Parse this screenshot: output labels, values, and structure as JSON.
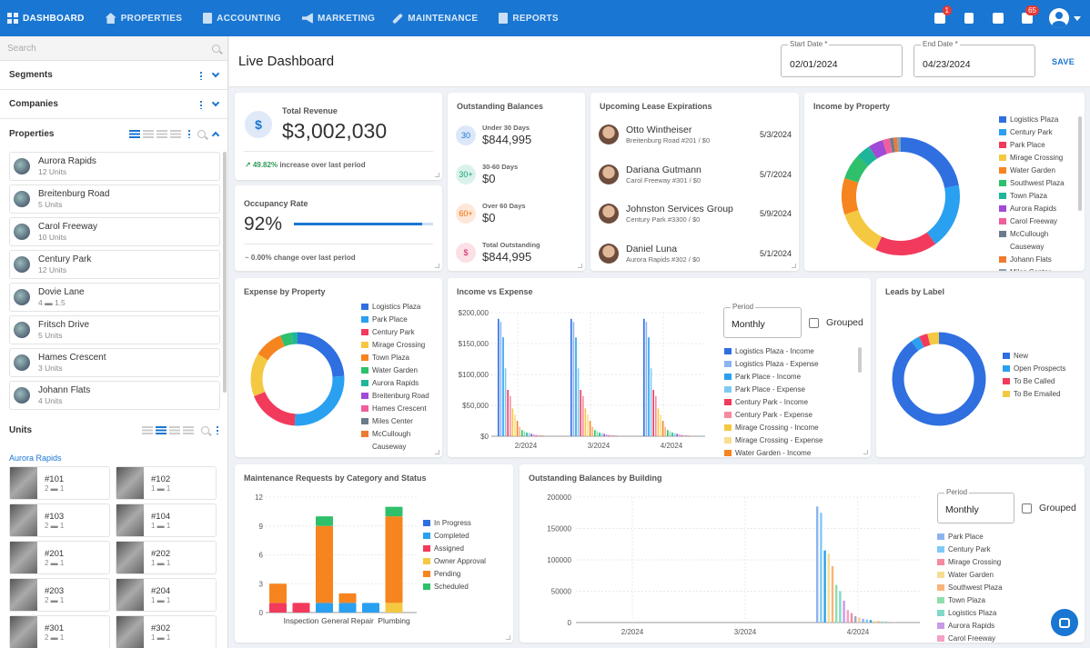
{
  "nav": {
    "items": [
      {
        "label": "DASHBOARD",
        "icon": "dashboard-icon",
        "active": true
      },
      {
        "label": "PROPERTIES",
        "icon": "home-icon"
      },
      {
        "label": "ACCOUNTING",
        "icon": "document-icon"
      },
      {
        "label": "MARKETING",
        "icon": "megaphone-icon"
      },
      {
        "label": "MAINTENANCE",
        "icon": "wrench-icon"
      },
      {
        "label": "REPORTS",
        "icon": "report-icon"
      }
    ],
    "badges": {
      "printer": "1",
      "chat": "65"
    }
  },
  "sidebar": {
    "search_placeholder": "Search",
    "segments": "Segments",
    "companies": "Companies",
    "properties_title": "Properties",
    "properties": [
      {
        "name": "Aurora Rapids",
        "sub": "12 Units"
      },
      {
        "name": "Breitenburg Road",
        "sub": "5 Units"
      },
      {
        "name": "Carol Freeway",
        "sub": "10 Units"
      },
      {
        "name": "Century Park",
        "sub": "12 Units"
      },
      {
        "name": "Dovie Lane",
        "sub": "4 ▬ 1.5"
      },
      {
        "name": "Fritsch Drive",
        "sub": "5 Units"
      },
      {
        "name": "Hames Crescent",
        "sub": "3 Units"
      },
      {
        "name": "Johann Flats",
        "sub": "4 Units"
      }
    ],
    "units_title": "Units",
    "unit_group": "Aurora Rapids",
    "units": [
      {
        "name": "#101",
        "sub": "2 ▬ 1"
      },
      {
        "name": "#102",
        "sub": "1 ▬ 1"
      },
      {
        "name": "#103",
        "sub": "2 ▬ 1"
      },
      {
        "name": "#104",
        "sub": "1 ▬ 1"
      },
      {
        "name": "#201",
        "sub": "2 ▬ 1"
      },
      {
        "name": "#202",
        "sub": "1 ▬ 1"
      },
      {
        "name": "#203",
        "sub": "2 ▬ 1"
      },
      {
        "name": "#204",
        "sub": "1 ▬ 1"
      },
      {
        "name": "#301",
        "sub": "2 ▬ 1"
      },
      {
        "name": "#302",
        "sub": "1 ▬ 1"
      }
    ]
  },
  "header": {
    "title": "Live Dashboard",
    "start_label": "Start Date *",
    "start_value": "02/01/2024",
    "end_label": "End Date *",
    "end_value": "04/23/2024",
    "save": "SAVE"
  },
  "revenue": {
    "title": "Total Revenue",
    "value": "$3,002,030",
    "pct": "49.82%",
    "note": "increase over last period"
  },
  "occupancy": {
    "title": "Occupancy Rate",
    "value": "92%",
    "fill": 0.92,
    "pct": "0.00%",
    "note": "change over last period"
  },
  "balances": {
    "title": "Outstanding Balances",
    "rows": [
      {
        "badge": "30",
        "label": "Under 30 Days",
        "value": "$844,995",
        "bg": "#dce8f9",
        "fg": "#1976d2"
      },
      {
        "badge": "30+",
        "label": "30-60 Days",
        "value": "$0",
        "bg": "#d9f3ec",
        "fg": "#1b9e77"
      },
      {
        "badge": "60+",
        "label": "Over 60 Days",
        "value": "$0",
        "bg": "#fde7d8",
        "fg": "#ef6c00"
      },
      {
        "badge": "$",
        "label": "Total Outstanding",
        "value": "$844,995",
        "bg": "#fbe0e6",
        "fg": "#d81b60"
      }
    ]
  },
  "leases": {
    "title": "Upcoming Lease Expirations",
    "rows": [
      {
        "name": "Otto Wintheiser",
        "sub": "Breitenburg Road #201  /  $0",
        "date": "5/3/2024"
      },
      {
        "name": "Dariana Gutmann",
        "sub": "Carol Freeway #301  /  $0",
        "date": "5/7/2024"
      },
      {
        "name": "Johnston Services Group",
        "sub": "Century Park #3300  /  $0",
        "date": "5/9/2024"
      },
      {
        "name": "Daniel Luna",
        "sub": "Aurora Rapids #302  /  $0",
        "date": "5/1/2024"
      }
    ]
  },
  "income_by_property": {
    "title": "Income by Property",
    "legend": [
      {
        "name": "Logistics Plaza",
        "color": "#2f6fe0"
      },
      {
        "name": "Century Park",
        "color": "#2aa0f0"
      },
      {
        "name": "Park Place",
        "color": "#f23a5c"
      },
      {
        "name": "Mirage Crossing",
        "color": "#f5c842"
      },
      {
        "name": "Water Garden",
        "color": "#f6841f"
      },
      {
        "name": "Southwest Plaza",
        "color": "#2ec06a"
      },
      {
        "name": "Town Plaza",
        "color": "#1fb59a"
      },
      {
        "name": "Aurora Rapids",
        "color": "#a04ad8"
      },
      {
        "name": "Carol Freeway",
        "color": "#f05f9c"
      },
      {
        "name": "McCullough Causeway",
        "color": "#6b7b8c"
      },
      {
        "name": "Johann Flats",
        "color": "#f07a30"
      },
      {
        "name": "Miles Center",
        "color": "#8aa0b0"
      }
    ],
    "slices": [
      0.22,
      0.18,
      0.17,
      0.13,
      0.1,
      0.07,
      0.04,
      0.04,
      0.02,
      0.01,
      0.01,
      0.01
    ]
  },
  "expense_by_property": {
    "title": "Expense by Property",
    "legend": [
      {
        "name": "Logistics Plaza",
        "color": "#2f6fe0"
      },
      {
        "name": "Park Place",
        "color": "#2aa0f0"
      },
      {
        "name": "Century Park",
        "color": "#f23a5c"
      },
      {
        "name": "Mirage Crossing",
        "color": "#f5c842"
      },
      {
        "name": "Town Plaza",
        "color": "#f6841f"
      },
      {
        "name": "Water Garden",
        "color": "#2ec06a"
      },
      {
        "name": "Aurora Rapids",
        "color": "#1fb59a"
      },
      {
        "name": "Breitenburg Road",
        "color": "#a04ad8"
      },
      {
        "name": "Hames Crescent",
        "color": "#f05f9c"
      },
      {
        "name": "Miles Center",
        "color": "#6b7b8c"
      },
      {
        "name": "McCullough Causeway",
        "color": "#f07a30"
      }
    ],
    "slices": [
      0.24,
      0.27,
      0.18,
      0.15,
      0.1,
      0.04,
      0.02
    ]
  },
  "income_vs_expense": {
    "title": "Income vs Expense",
    "period_label": "Period",
    "period_value": "Monthly",
    "grouped": "Grouped",
    "y_ticks": [
      "$200,000",
      "$150,000",
      "$100,000",
      "$50,000",
      "$0"
    ],
    "x_ticks": [
      "2/2024",
      "3/2024",
      "4/2024"
    ],
    "ymax": 200000,
    "months": [
      [
        190000,
        185000,
        160000,
        110000,
        75000,
        65000,
        45000,
        35000,
        25000,
        15000,
        10000,
        8000,
        6000,
        5000,
        4000,
        3000,
        2000,
        2000,
        1000,
        1000
      ],
      [
        190000,
        185000,
        160000,
        110000,
        75000,
        65000,
        45000,
        35000,
        25000,
        15000,
        10000,
        8000,
        6000,
        5000,
        4000,
        3000,
        2000,
        2000,
        1000,
        1000
      ],
      [
        190000,
        185000,
        160000,
        110000,
        75000,
        65000,
        45000,
        35000,
        25000,
        15000,
        10000,
        8000,
        6000,
        5000,
        4000,
        3000,
        2000,
        2000,
        1000,
        1000
      ]
    ],
    "legend": [
      {
        "name": "Logistics Plaza - Income",
        "color": "#2f6fe0"
      },
      {
        "name": "Logistics Plaza - Expense",
        "color": "#8db4f0"
      },
      {
        "name": "Park Place - Income",
        "color": "#2aa0f0"
      },
      {
        "name": "Park Place - Expense",
        "color": "#7fcaf5"
      },
      {
        "name": "Century Park - Income",
        "color": "#f23a5c"
      },
      {
        "name": "Century Park - Expense",
        "color": "#f58aa0"
      },
      {
        "name": "Mirage Crossing - Income",
        "color": "#f5c842"
      },
      {
        "name": "Mirage Crossing - Expense",
        "color": "#f8dd90"
      },
      {
        "name": "Water Garden - Income",
        "color": "#f6841f"
      }
    ]
  },
  "leads": {
    "title": "Leads by Label",
    "legend": [
      {
        "name": "New",
        "color": "#2f6fe0"
      },
      {
        "name": "Open Prospects",
        "color": "#2aa0f0"
      },
      {
        "name": "To Be Called",
        "color": "#f23a5c"
      },
      {
        "name": "To Be Emailed",
        "color": "#f5c842"
      }
    ],
    "slices": [
      0.9,
      0.03,
      0.03,
      0.04
    ]
  },
  "maintenance": {
    "title": "Maintenance Requests by Category and Status",
    "chart_data": {
      "type": "bar",
      "categories": [
        "Inspection",
        "General Repair",
        "Plumbing"
      ],
      "y_ticks": [
        "12",
        "9",
        "6",
        "3",
        "0"
      ],
      "ymax": 12,
      "bars": [
        [
          {
            "s": "Assigned",
            "v": 1
          },
          {
            "s": "Pending",
            "v": 2
          }
        ],
        [
          {
            "s": "Assigned",
            "v": 1
          }
        ],
        [
          {
            "s": "Completed",
            "v": 1
          },
          {
            "s": "Pending",
            "v": 8
          },
          {
            "s": "Scheduled",
            "v": 1
          }
        ],
        [
          {
            "s": "Completed",
            "v": 1
          },
          {
            "s": "Pending",
            "v": 1
          }
        ],
        [
          {
            "s": "Completed",
            "v": 1
          }
        ],
        [
          {
            "s": "Owner Approval",
            "v": 1
          },
          {
            "s": "Pending",
            "v": 9
          },
          {
            "s": "Scheduled",
            "v": 1
          }
        ]
      ],
      "legend": [
        {
          "name": "In Progress",
          "color": "#2f6fe0"
        },
        {
          "name": "Completed",
          "color": "#2aa0f0"
        },
        {
          "name": "Assigned",
          "color": "#f23a5c"
        },
        {
          "name": "Owner Approval",
          "color": "#f5c842"
        },
        {
          "name": "Pending",
          "color": "#f6841f"
        },
        {
          "name": "Scheduled",
          "color": "#2ec06a"
        }
      ]
    }
  },
  "balances_by_building": {
    "title": "Outstanding Balances by Building",
    "period_label": "Period",
    "period_value": "Monthly",
    "grouped": "Grouped",
    "y_ticks": [
      "200000",
      "150000",
      "100000",
      "50000",
      "0"
    ],
    "x_ticks": [
      "2/2024",
      "3/2024",
      "4/2024"
    ],
    "ymax": 200000,
    "values": [
      185000,
      175000,
      115000,
      110000,
      90000,
      60000,
      50000,
      35000,
      20000,
      15000,
      10000,
      8000,
      6000,
      5000,
      4000,
      3000,
      2500,
      2000,
      1500,
      1000,
      800,
      500
    ],
    "legend": [
      {
        "name": "Park Place",
        "color": "#8db4f0"
      },
      {
        "name": "Century Park",
        "color": "#7fcaf5"
      },
      {
        "name": "Mirage Crossing",
        "color": "#f58aa0"
      },
      {
        "name": "Water Garden",
        "color": "#f8dd90"
      },
      {
        "name": "Southwest Plaza",
        "color": "#f9b47a"
      },
      {
        "name": "Town Plaza",
        "color": "#8edfae"
      },
      {
        "name": "Logistics Plaza",
        "color": "#7fd9c8"
      },
      {
        "name": "Aurora Rapids",
        "color": "#c99ae8"
      },
      {
        "name": "Carol Freeway",
        "color": "#f5a0c4"
      }
    ]
  }
}
